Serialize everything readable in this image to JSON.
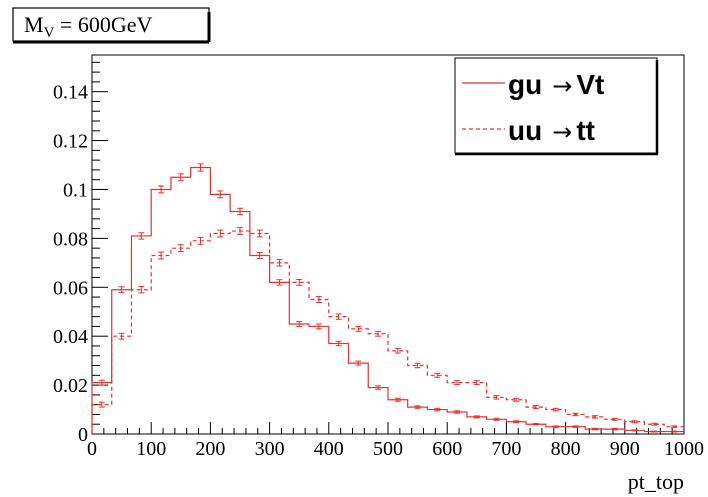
{
  "chart_data": {
    "type": "line",
    "title": {
      "main": "M",
      "sub": "V",
      "rest": " = 600GeV"
    },
    "xlabel": "pt_top",
    "ylabel": "",
    "xlim": [
      0,
      1000
    ],
    "ylim": [
      0,
      0.155
    ],
    "bin_width": 33.33,
    "x_ticks": [
      0,
      100,
      200,
      300,
      400,
      500,
      600,
      700,
      800,
      900,
      1000
    ],
    "x_tick_labels": [
      "0",
      "100",
      "200",
      "300",
      "400",
      "500",
      "600",
      "700",
      "800",
      "900",
      "1000"
    ],
    "y_ticks": [
      0,
      0.02,
      0.04,
      0.06,
      0.08,
      0.1,
      0.12,
      0.14
    ],
    "y_tick_labels": [
      "0",
      "0.02",
      "0.04",
      "0.06",
      "0.08",
      "0.1",
      "0.12",
      "0.14"
    ],
    "grid": false,
    "legend_position": "top-right",
    "line_color": "#e8302f",
    "series": [
      {
        "label_left": "gu",
        "arrow": "→",
        "label_right": "Vt",
        "style": "solid",
        "values": [
          0.021,
          0.059,
          0.081,
          0.1,
          0.105,
          0.109,
          0.098,
          0.091,
          0.073,
          0.062,
          0.045,
          0.044,
          0.037,
          0.029,
          0.019,
          0.014,
          0.011,
          0.01,
          0.009,
          0.007,
          0.006,
          0.005,
          0.004,
          0.003,
          0.003,
          0.002,
          0.002,
          0.0015,
          0.001,
          0.001
        ],
        "errors": [
          0.001,
          0.0012,
          0.0013,
          0.0014,
          0.0014,
          0.0015,
          0.0014,
          0.0013,
          0.0012,
          0.0011,
          0.001,
          0.001,
          0.0009,
          0.0008,
          0.0007,
          0.0006,
          0.0005,
          0.0005,
          0.0005,
          0.0004,
          0.0004,
          0.0004,
          0.0003,
          0.0003,
          0.0003,
          0.0003,
          0.0003,
          0.0002,
          0.0002,
          0.0002
        ]
      },
      {
        "label_left": "uu",
        "arrow": "→",
        "label_right": "tt",
        "style": "dashed",
        "values": [
          0.012,
          0.04,
          0.059,
          0.073,
          0.076,
          0.079,
          0.082,
          0.083,
          0.082,
          0.07,
          0.062,
          0.055,
          0.048,
          0.043,
          0.041,
          0.034,
          0.028,
          0.024,
          0.021,
          0.021,
          0.015,
          0.014,
          0.011,
          0.01,
          0.008,
          0.007,
          0.006,
          0.005,
          0.004,
          0.003
        ],
        "errors": [
          0.001,
          0.0012,
          0.0013,
          0.0014,
          0.0014,
          0.0014,
          0.0014,
          0.0014,
          0.0014,
          0.0013,
          0.0012,
          0.0012,
          0.0011,
          0.001,
          0.001,
          0.0009,
          0.0009,
          0.0008,
          0.0008,
          0.0008,
          0.0007,
          0.0006,
          0.0006,
          0.0005,
          0.0005,
          0.0005,
          0.0004,
          0.0004,
          0.0004,
          0.0003
        ]
      }
    ]
  }
}
